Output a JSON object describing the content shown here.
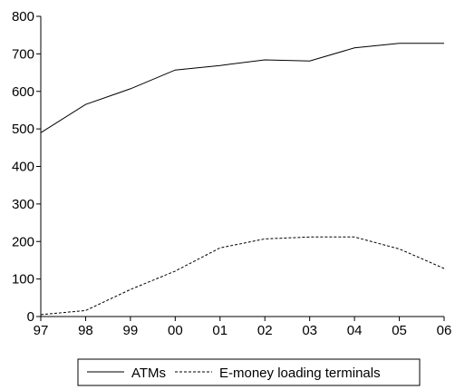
{
  "chart_data": {
    "type": "line",
    "title": "",
    "xlabel": "",
    "ylabel": "",
    "categories": [
      "97",
      "98",
      "99",
      "00",
      "01",
      "02",
      "03",
      "04",
      "05",
      "06"
    ],
    "ylim": [
      0,
      800
    ],
    "yticks": [
      0,
      100,
      200,
      300,
      400,
      500,
      600,
      700,
      800
    ],
    "grid": false,
    "legend_position": "bottom",
    "series": [
      {
        "name": "ATMs",
        "line_style": "solid",
        "color": "#000000",
        "values": [
          490,
          565,
          607,
          657,
          669,
          684,
          681,
          716,
          728,
          728
        ]
      },
      {
        "name": "E-money loading terminals",
        "line_style": "dashed",
        "color": "#000000",
        "values": [
          5,
          16,
          72,
          121,
          183,
          207,
          212,
          212,
          180,
          128
        ]
      }
    ]
  }
}
